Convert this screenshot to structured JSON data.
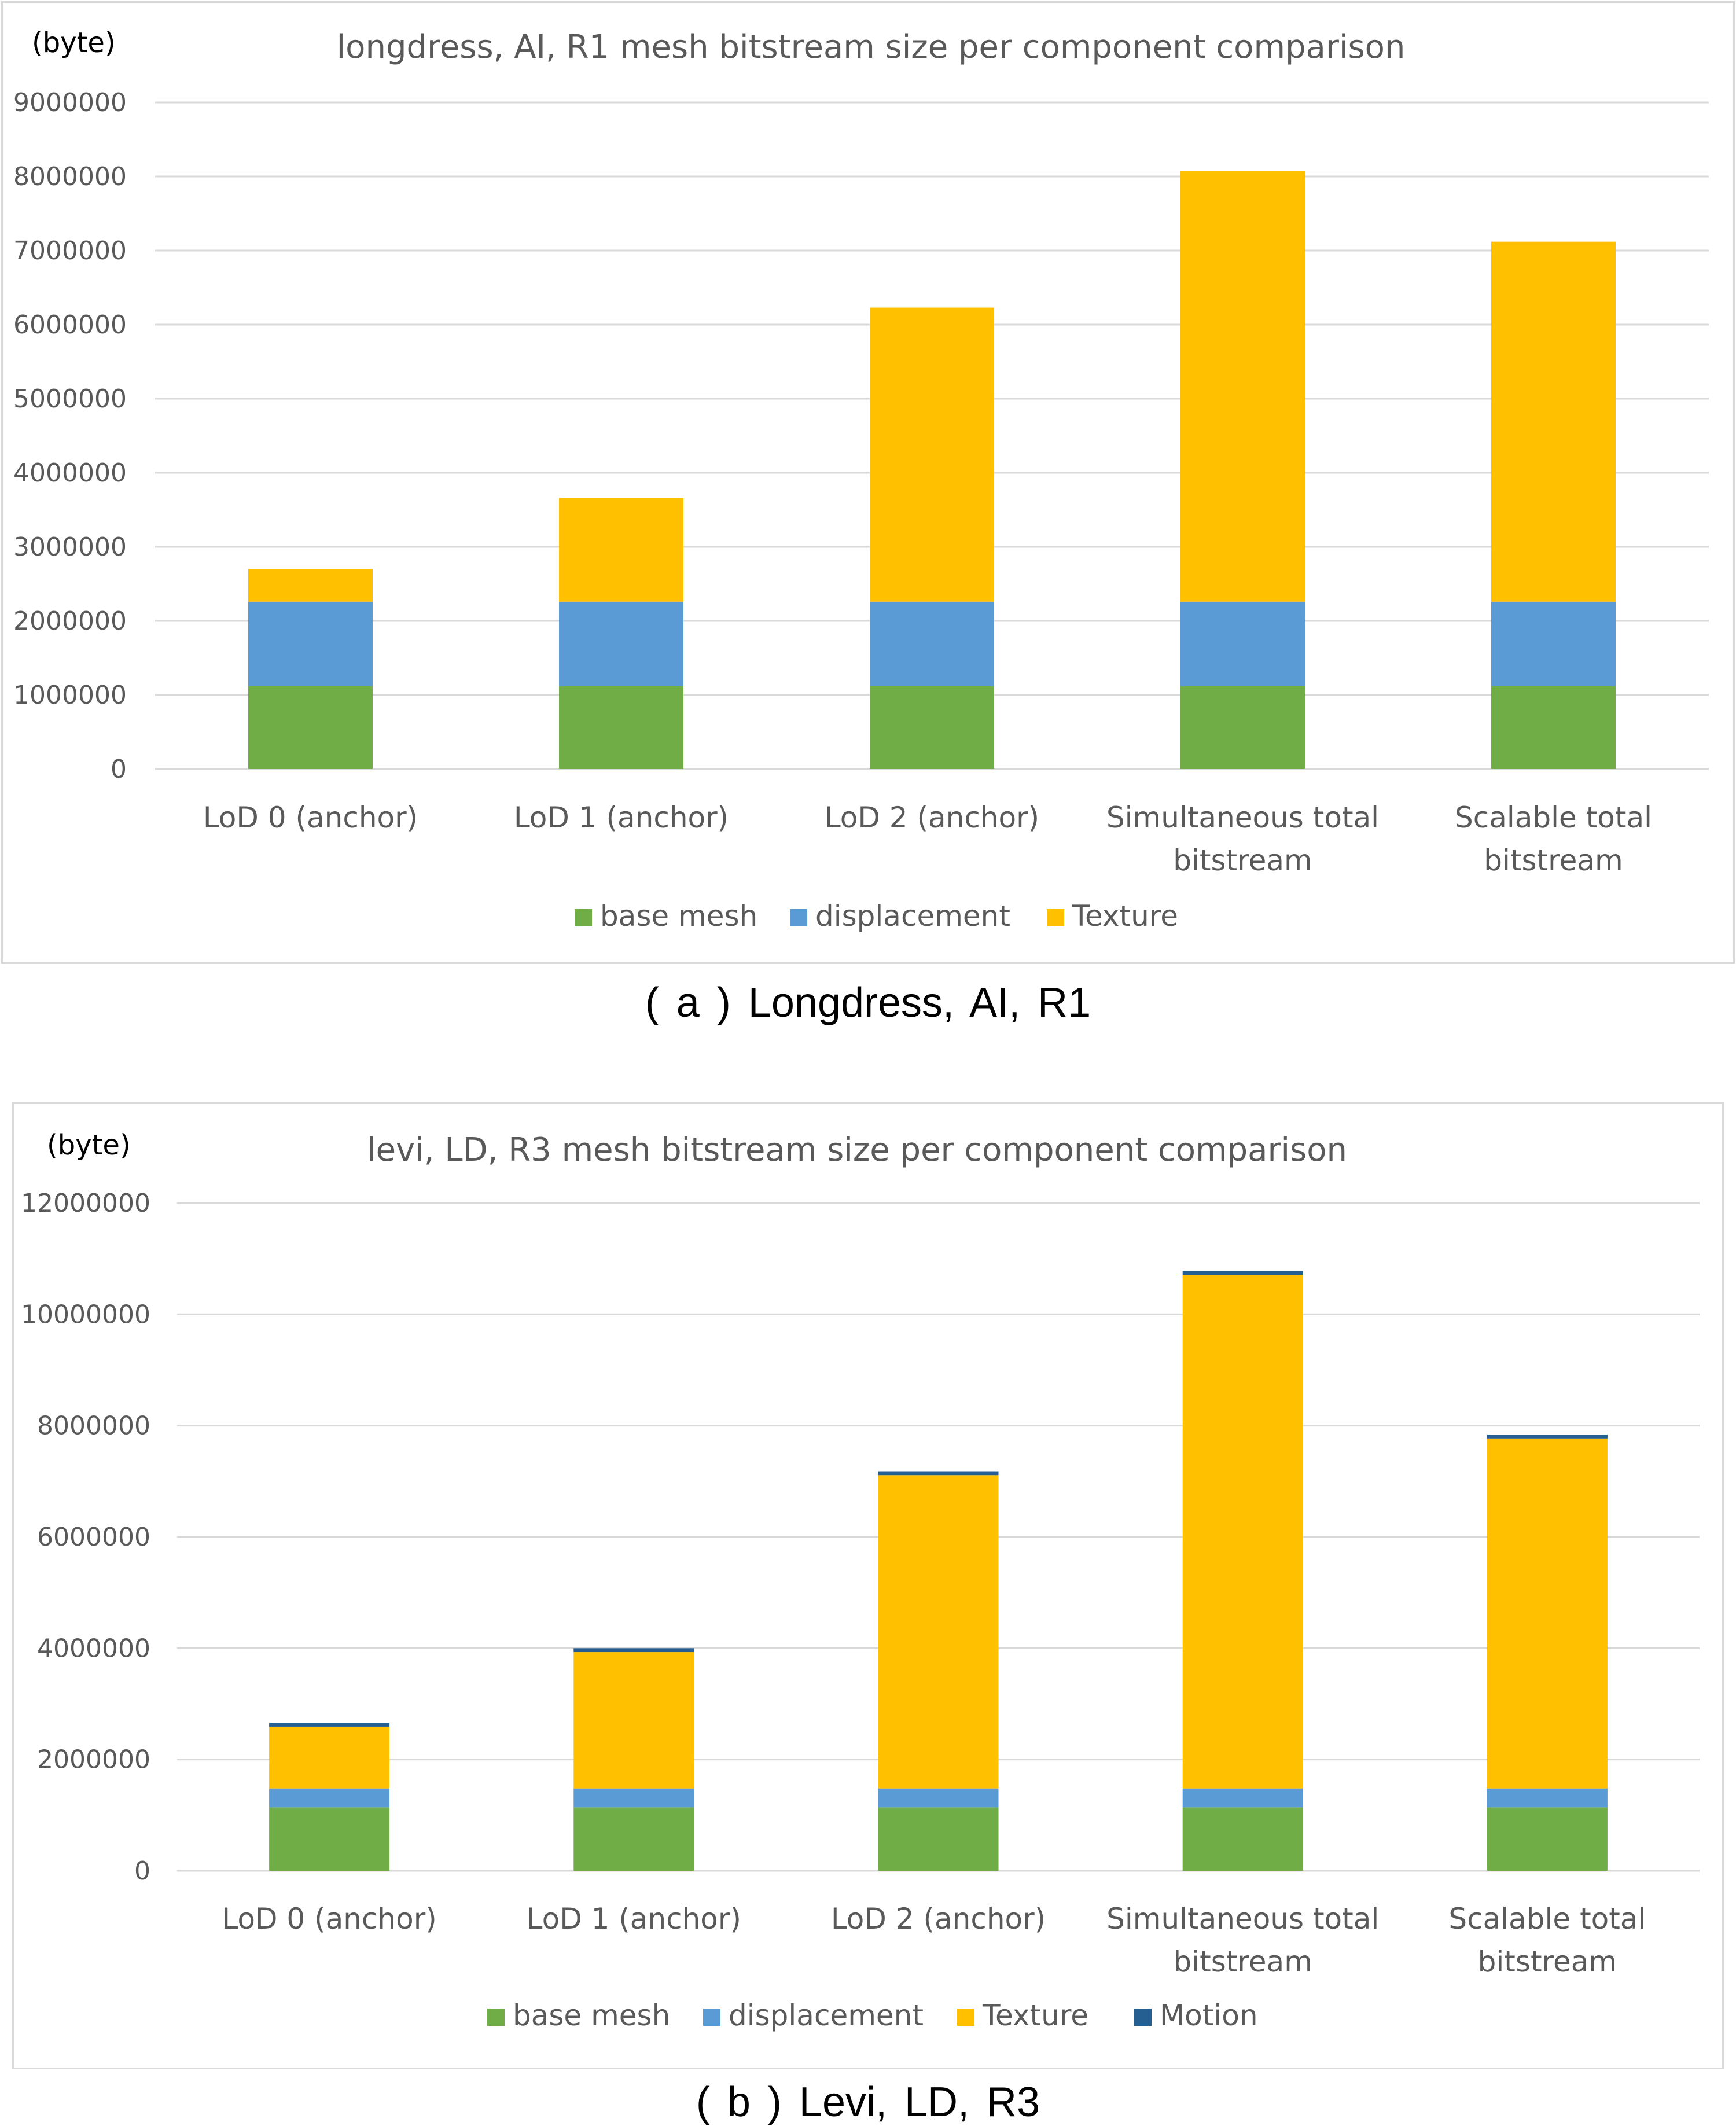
{
  "chart_data": [
    {
      "type": "bar",
      "stacked": true,
      "title": "longdress, AI, R1 mesh bitstream size per component comparison",
      "unit_label": "(byte)",
      "caption": "( a ) Longdress, AI, R1",
      "categories": [
        [
          "LoD 0 (anchor)"
        ],
        [
          "LoD 1 (anchor)"
        ],
        [
          "LoD 2 (anchor)"
        ],
        [
          "Simultaneous total",
          "bitstream"
        ],
        [
          "Scalable total",
          "bitstream"
        ]
      ],
      "ylim": [
        0,
        9000000
      ],
      "yticks": [
        0,
        1000000,
        2000000,
        3000000,
        4000000,
        5000000,
        6000000,
        7000000,
        8000000,
        9000000
      ],
      "grid": true,
      "legend_position": "bottom",
      "series": [
        {
          "name": "base mesh",
          "color": "#70ad47",
          "values": [
            1120000,
            1120000,
            1120000,
            1120000,
            1120000
          ]
        },
        {
          "name": "displacement",
          "color": "#5b9bd5",
          "values": [
            1140000,
            1140000,
            1140000,
            1140000,
            1140000
          ]
        },
        {
          "name": "Texture",
          "color": "#ffc000",
          "values": [
            440000,
            1400000,
            3970000,
            5810000,
            4860000
          ]
        }
      ]
    },
    {
      "type": "bar",
      "stacked": true,
      "title": "levi, LD, R3 mesh bitstream size per component comparison",
      "unit_label": "(byte)",
      "caption": "( b ) Levi, LD, R3",
      "categories": [
        [
          "LoD 0 (anchor)"
        ],
        [
          "LoD 1 (anchor)"
        ],
        [
          "LoD 2 (anchor)"
        ],
        [
          "Simultaneous total",
          "bitstream"
        ],
        [
          "Scalable total",
          "bitstream"
        ]
      ],
      "ylim": [
        0,
        12000000
      ],
      "yticks": [
        0,
        2000000,
        4000000,
        6000000,
        8000000,
        10000000,
        12000000
      ],
      "grid": true,
      "legend_position": "bottom",
      "series": [
        {
          "name": "base mesh",
          "color": "#70ad47",
          "values": [
            1140000,
            1140000,
            1140000,
            1140000,
            1140000
          ]
        },
        {
          "name": "displacement",
          "color": "#5b9bd5",
          "values": [
            340000,
            340000,
            340000,
            340000,
            340000
          ]
        },
        {
          "name": "Texture",
          "color": "#ffc000",
          "values": [
            1110000,
            2450000,
            5630000,
            9230000,
            6290000
          ]
        },
        {
          "name": "Motion",
          "color": "#255e91",
          "values": [
            70000,
            70000,
            70000,
            70000,
            70000
          ]
        }
      ]
    }
  ]
}
